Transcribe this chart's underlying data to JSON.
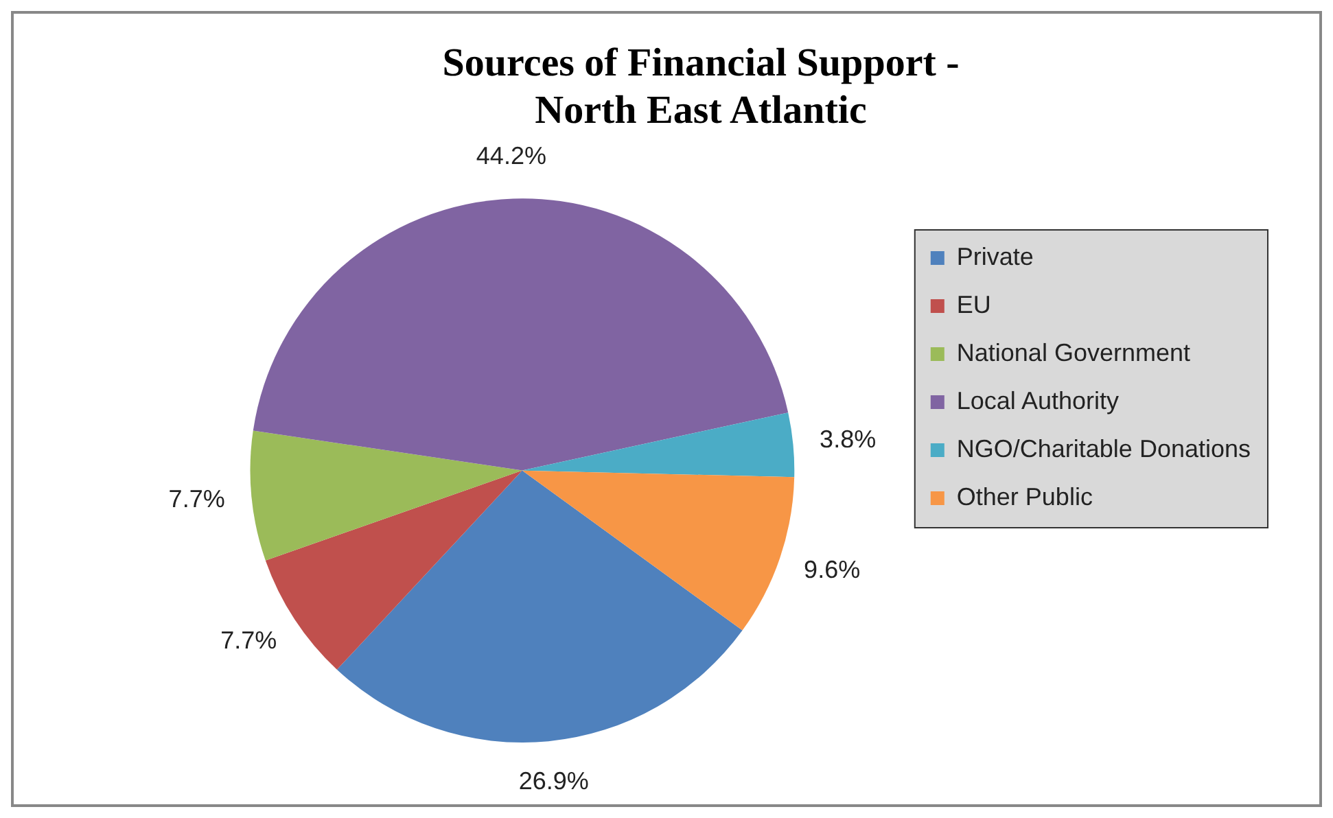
{
  "chart_data": {
    "type": "pie",
    "title": "Sources of Financial Support - North East Atlantic",
    "categories": [
      "Private",
      "EU",
      "National Government",
      "Local Authority",
      "NGO/Charitable Donations",
      "Other Public"
    ],
    "values": [
      26.9,
      7.7,
      7.7,
      44.2,
      3.8,
      9.6
    ],
    "colors": [
      "#4f81bd",
      "#c0504d",
      "#9bbb59",
      "#8064a2",
      "#4bacc6",
      "#f79646"
    ],
    "value_labels": [
      "26.9%",
      "7.7%",
      "7.7%",
      "44.2%",
      "3.8%",
      "9.6%"
    ],
    "legend": "right"
  }
}
